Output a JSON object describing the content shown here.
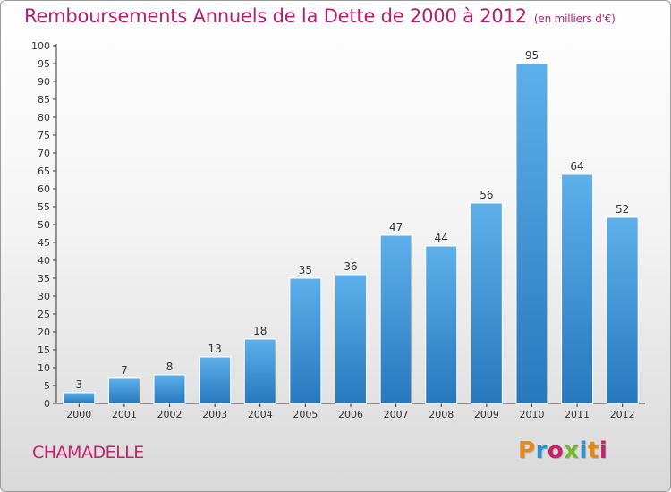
{
  "header": {
    "title": "Remboursements Annuels de la Dette de 2000 à 2012",
    "subtitle": "(en milliers d'€)"
  },
  "footer": {
    "town": "CHAMADELLE",
    "logo_text": "Proxiti",
    "logo_colors": [
      "#e8861a",
      "#2f8fd3",
      "#c8206b",
      "#76b82a",
      "#2f8fd3",
      "#e8861a",
      "#c8206b"
    ]
  },
  "colors": {
    "bar_light": "#5aaee8",
    "bar_dark": "#2a7ec4",
    "accent": "#b5206c"
  },
  "chart_data": {
    "type": "bar",
    "categories": [
      "2000",
      "2001",
      "2002",
      "2003",
      "2004",
      "2005",
      "2006",
      "2007",
      "2008",
      "2009",
      "2010",
      "2011",
      "2012"
    ],
    "values": [
      3,
      7,
      8,
      13,
      18,
      35,
      36,
      47,
      44,
      56,
      95,
      64,
      52
    ],
    "ylim": [
      0,
      100
    ],
    "ytick_step": 5,
    "grid": false
  }
}
